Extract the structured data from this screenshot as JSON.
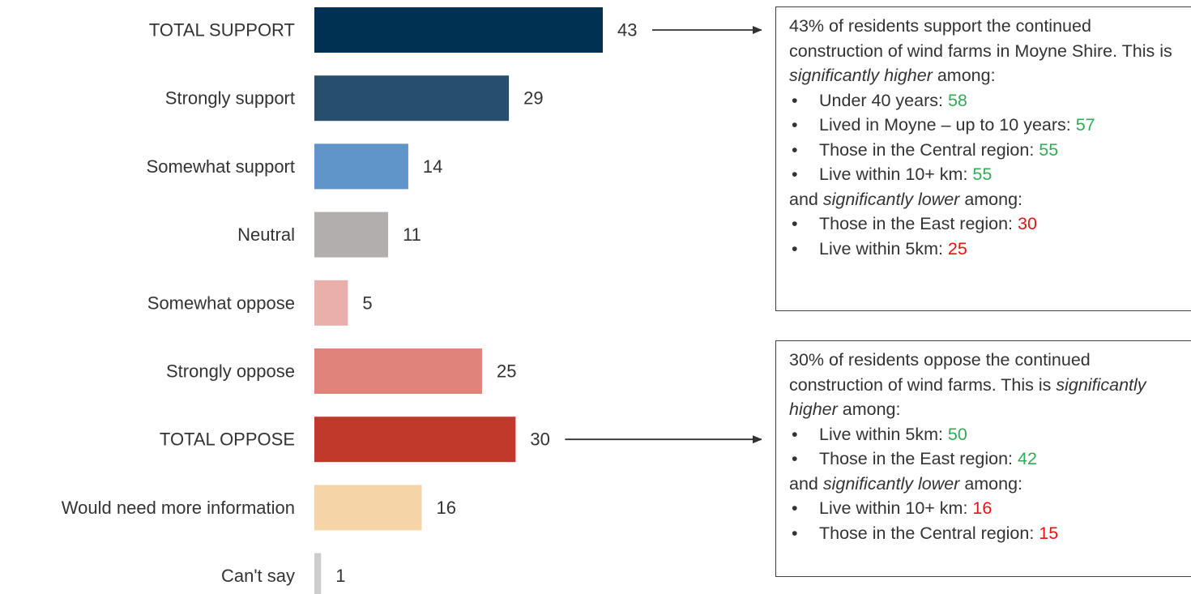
{
  "chart_data": {
    "type": "bar",
    "orientation": "horizontal",
    "categories": [
      "TOTAL SUPPORT",
      "Strongly support",
      "Somewhat support",
      "Neutral",
      "Somewhat oppose",
      "Strongly oppose",
      "TOTAL OPPOSE",
      "Would need more information",
      "Can't say"
    ],
    "values": [
      43,
      29,
      14,
      11,
      5,
      25,
      30,
      16,
      1
    ],
    "colors": [
      "#003153",
      "#284e6e",
      "#5f95c8",
      "#b2aeae",
      "#eaaeab",
      "#e0837a",
      "#c0392b",
      "#f5d4a8",
      "#cccccc"
    ],
    "xlim": [
      0,
      43
    ],
    "grid": false,
    "legend": false
  },
  "callouts": {
    "support": {
      "intro_pre": "43% of residents support the continued construction of wind farms in Moyne Shire. This is ",
      "intro_em": "significantly higher",
      "intro_post": " among:",
      "higher": [
        {
          "label": "Under 40 years: ",
          "value": "58"
        },
        {
          "label": "Lived in Moyne – up to 10 years: ",
          "value": "57"
        },
        {
          "label": "Those in the Central region: ",
          "value": "55"
        },
        {
          "label": "Live within 10+ km: ",
          "value": "55"
        }
      ],
      "lower_pre": "and ",
      "lower_em": "significantly lower",
      "lower_post": " among:",
      "lower": [
        {
          "label": "Those in the East region: ",
          "value": "30"
        },
        {
          "label": "Live within 5km: ",
          "value": "25"
        }
      ]
    },
    "oppose": {
      "intro_pre": "30% of residents oppose the continued construction of wind farms. This is ",
      "intro_em": "significantly higher",
      "intro_post": " among:",
      "higher": [
        {
          "label": "Live within 5km: ",
          "value": "50"
        },
        {
          "label": "Those in the East region: ",
          "value": "42"
        }
      ],
      "lower_pre": "and ",
      "lower_em": "significantly lower",
      "lower_post": " among:",
      "lower": [
        {
          "label": "Live within 10+ km: ",
          "value": "16"
        },
        {
          "label": "Those in the Central region: ",
          "value": "15"
        }
      ]
    }
  },
  "colors": {
    "higher_value": "#33aa55",
    "lower_value": "#ee1111",
    "arrow": "#333333"
  }
}
